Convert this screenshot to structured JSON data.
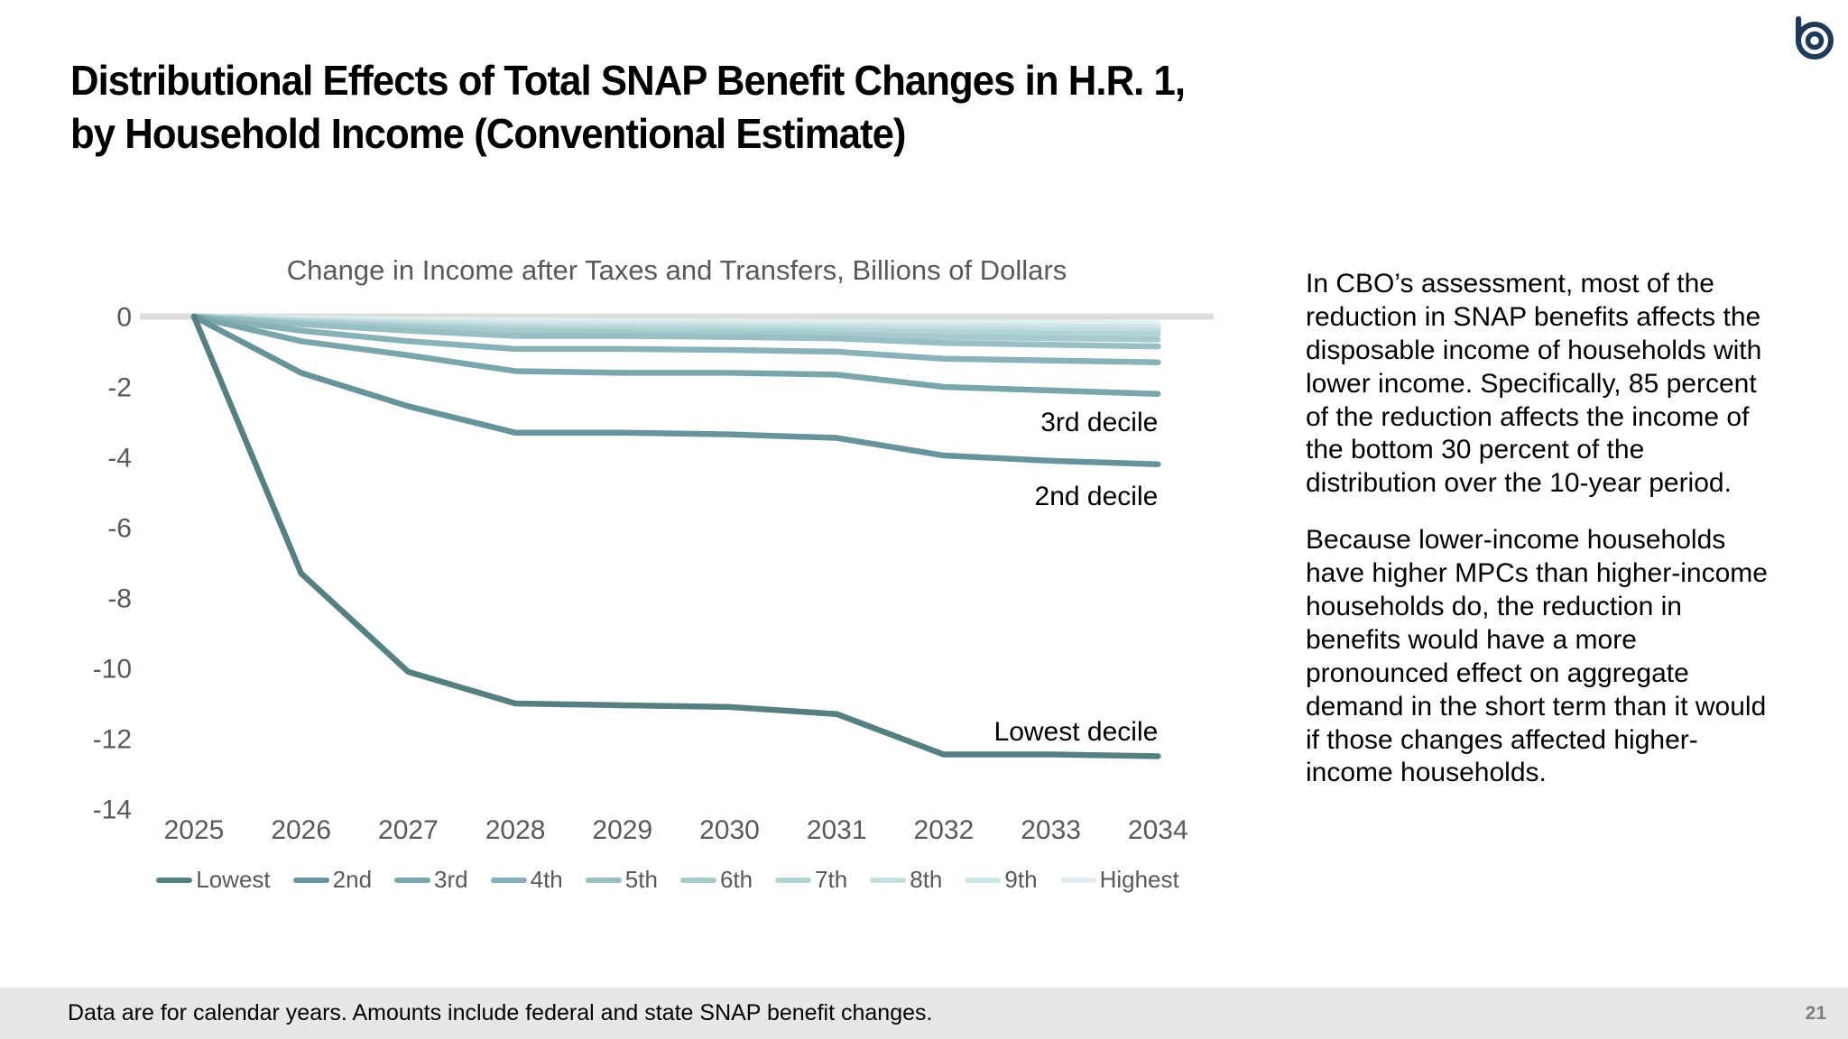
{
  "header": {
    "title_line1": "Distributional Effects of Total SNAP Benefit Changes in H.R. 1,",
    "title_line2": "by Household Income (Conventional Estimate)"
  },
  "logo": {
    "name": "cbo-logo",
    "color": "#1f3a56"
  },
  "chart_data": {
    "type": "line",
    "title": "Change in Income after Taxes and Transfers, Billions of Dollars",
    "xlabel": "",
    "ylabel": "",
    "categories": [
      2025,
      2026,
      2027,
      2028,
      2029,
      2030,
      2031,
      2032,
      2033,
      2034
    ],
    "yticks": [
      0,
      -2,
      -4,
      -6,
      -8,
      -10,
      -12,
      -14
    ],
    "ylim": [
      -14.8,
      0.5
    ],
    "grid": false,
    "zero_line": true,
    "zero_line_color": "#dcdcdc",
    "legend_position": "bottom",
    "series": [
      {
        "name": "Lowest",
        "color": "#567f82",
        "values": [
          0,
          -7.3,
          -10.1,
          -11.0,
          -11.05,
          -11.1,
          -11.3,
          -12.45,
          -12.45,
          -12.5
        ]
      },
      {
        "name": "2nd",
        "color": "#67949a",
        "values": [
          0,
          -1.6,
          -2.55,
          -3.3,
          -3.3,
          -3.35,
          -3.45,
          -3.95,
          -4.1,
          -4.2
        ]
      },
      {
        "name": "3rd",
        "color": "#79a6ab",
        "values": [
          0,
          -0.7,
          -1.1,
          -1.55,
          -1.6,
          -1.6,
          -1.65,
          -2.0,
          -2.1,
          -2.2
        ]
      },
      {
        "name": "4th",
        "color": "#88b2b8",
        "values": [
          0,
          -0.4,
          -0.7,
          -0.92,
          -0.92,
          -0.95,
          -1.0,
          -1.2,
          -1.25,
          -1.3
        ]
      },
      {
        "name": "5th",
        "color": "#97bfc4",
        "values": [
          0,
          -0.22,
          -0.4,
          -0.55,
          -0.55,
          -0.58,
          -0.62,
          -0.75,
          -0.8,
          -0.85
        ]
      },
      {
        "name": "6th",
        "color": "#a6cacd",
        "values": [
          0,
          -0.18,
          -0.3,
          -0.42,
          -0.45,
          -0.46,
          -0.5,
          -0.58,
          -0.62,
          -0.65
        ]
      },
      {
        "name": "7th",
        "color": "#b4d3d6",
        "values": [
          0,
          -0.14,
          -0.25,
          -0.34,
          -0.36,
          -0.38,
          -0.4,
          -0.45,
          -0.48,
          -0.5
        ]
      },
      {
        "name": "8th",
        "color": "#c4dde0",
        "values": [
          0,
          -0.11,
          -0.2,
          -0.27,
          -0.28,
          -0.3,
          -0.32,
          -0.35,
          -0.38,
          -0.4
        ]
      },
      {
        "name": "9th",
        "color": "#d2e6e7",
        "values": [
          0,
          -0.08,
          -0.14,
          -0.19,
          -0.2,
          -0.22,
          -0.24,
          -0.27,
          -0.28,
          -0.3
        ]
      },
      {
        "name": "Highest",
        "color": "#e0efef",
        "values": [
          0,
          -0.05,
          -0.09,
          -0.12,
          -0.13,
          -0.14,
          -0.15,
          -0.17,
          -0.18,
          -0.2
        ]
      }
    ],
    "annotations": [
      {
        "text": "3rd decile",
        "x": 2034,
        "y": -3.0
      },
      {
        "text": "2nd decile",
        "x": 2034,
        "y": -5.1
      },
      {
        "text": "Lowest decile",
        "x": 2034,
        "y": -11.8
      }
    ]
  },
  "commentary": {
    "para1": "In CBO’s assessment, most of the reduction in SNAP benefits affects the disposable income of households with lower income. Specifically, 85 percent of the reduction affects the income of the bottom 30 percent of the distribution over the 10-year period.",
    "para2": "Because lower-income households have higher MPCs than higher-income households do, the reduction in benefits would have a more pronounced effect on aggregate demand in the short term than it would if those changes affected higher-income households."
  },
  "footer": {
    "note": "Data are for calendar years. Amounts include federal and state SNAP benefit changes.",
    "page_number": "21"
  }
}
